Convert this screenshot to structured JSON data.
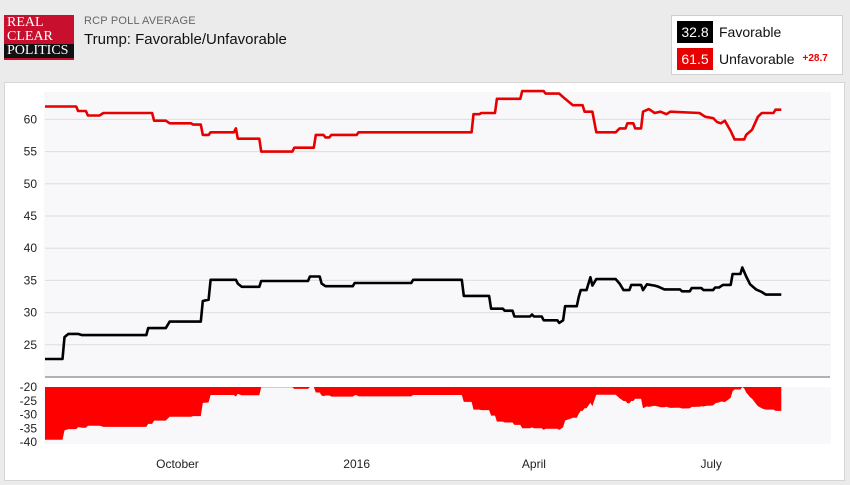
{
  "logo": {
    "line1": "REAL",
    "line2": "CLEAR",
    "line3": "POLITICS"
  },
  "header": {
    "kicker": "RCP POLL AVERAGE",
    "title": "Trump: Favorable/Unfavorable"
  },
  "legend": {
    "favorable": {
      "value": "32.8",
      "label": "Favorable",
      "color": "#000000"
    },
    "unfavorable": {
      "value": "61.5",
      "label": "Unfavorable",
      "color": "#e60000"
    },
    "spread": "+28.7"
  },
  "chart_data": [
    {
      "type": "line",
      "title": "Trump: Favorable/Unfavorable",
      "ylim": [
        20,
        65
      ],
      "yticks": [
        25,
        30,
        35,
        40,
        45,
        50,
        55,
        60
      ],
      "grid": true,
      "x_range": [
        "2015-07-25",
        "2016-08-31"
      ],
      "series": [
        {
          "name": "Unfavorable",
          "color": "#e60000",
          "points": [
            [
              "2015-07-25",
              62.0
            ],
            [
              "2015-08-10",
              62.0
            ],
            [
              "2015-08-11",
              61.3
            ],
            [
              "2015-08-15",
              61.3
            ],
            [
              "2015-08-16",
              60.6
            ],
            [
              "2015-08-22",
              60.6
            ],
            [
              "2015-08-24",
              61.0
            ],
            [
              "2015-09-18",
              61.0
            ],
            [
              "2015-09-19",
              59.8
            ],
            [
              "2015-09-25",
              59.8
            ],
            [
              "2015-09-27",
              59.4
            ],
            [
              "2015-10-08",
              59.4
            ],
            [
              "2015-10-09",
              59.2
            ],
            [
              "2015-10-13",
              59.2
            ],
            [
              "2015-10-14",
              57.6
            ],
            [
              "2015-10-17",
              57.6
            ],
            [
              "2015-10-18",
              58.0
            ],
            [
              "2015-10-30",
              58.0
            ],
            [
              "2015-10-31",
              58.6
            ],
            [
              "2015-11-01",
              57.0
            ],
            [
              "2015-11-12",
              57.0
            ],
            [
              "2015-11-13",
              55.0
            ],
            [
              "2015-11-29",
              55.0
            ],
            [
              "2015-11-30",
              55.6
            ],
            [
              "2015-12-10",
              55.6
            ],
            [
              "2015-12-11",
              57.6
            ],
            [
              "2015-12-15",
              57.6
            ],
            [
              "2015-12-16",
              57.2
            ],
            [
              "2015-12-18",
              57.2
            ],
            [
              "2015-12-19",
              57.6
            ],
            [
              "2016-01-01",
              57.6
            ],
            [
              "2016-01-02",
              58.0
            ],
            [
              "2016-02-29",
              58.0
            ],
            [
              "2016-03-01",
              60.8
            ],
            [
              "2016-03-04",
              60.8
            ],
            [
              "2016-03-05",
              61.0
            ],
            [
              "2016-03-12",
              61.0
            ],
            [
              "2016-03-13",
              63.2
            ],
            [
              "2016-03-25",
              63.2
            ],
            [
              "2016-03-26",
              64.4
            ],
            [
              "2016-04-06",
              64.4
            ],
            [
              "2016-04-07",
              64.0
            ],
            [
              "2016-04-14",
              64.0
            ],
            [
              "2016-04-17",
              63.2
            ],
            [
              "2016-04-21",
              62.2
            ],
            [
              "2016-04-26",
              62.2
            ],
            [
              "2016-04-27",
              61.2
            ],
            [
              "2016-05-01",
              61.2
            ],
            [
              "2016-05-03",
              58.0
            ],
            [
              "2016-05-13",
              58.0
            ],
            [
              "2016-05-15",
              58.6
            ],
            [
              "2016-05-18",
              58.6
            ],
            [
              "2016-05-19",
              59.4
            ],
            [
              "2016-05-22",
              59.4
            ],
            [
              "2016-05-23",
              58.6
            ],
            [
              "2016-05-26",
              58.6
            ],
            [
              "2016-05-27",
              61.2
            ],
            [
              "2016-05-30",
              61.6
            ],
            [
              "2016-06-02",
              61.0
            ],
            [
              "2016-06-05",
              61.2
            ],
            [
              "2016-06-08",
              60.8
            ],
            [
              "2016-06-10",
              61.2
            ],
            [
              "2016-06-25",
              61.0
            ],
            [
              "2016-06-28",
              60.4
            ],
            [
              "2016-07-02",
              60.2
            ],
            [
              "2016-07-04",
              59.6
            ],
            [
              "2016-07-06",
              59.4
            ],
            [
              "2016-07-08",
              59.8
            ],
            [
              "2016-07-11",
              58.2
            ],
            [
              "2016-07-13",
              56.9
            ],
            [
              "2016-07-18",
              56.9
            ],
            [
              "2016-07-19",
              57.6
            ],
            [
              "2016-07-22",
              58.4
            ],
            [
              "2016-07-25",
              60.4
            ],
            [
              "2016-07-27",
              61.0
            ],
            [
              "2016-08-02",
              61.0
            ],
            [
              "2016-08-03",
              61.5
            ],
            [
              "2016-08-06",
              61.5
            ]
          ]
        },
        {
          "name": "Favorable",
          "color": "#000000",
          "points": [
            [
              "2015-07-25",
              22.8
            ],
            [
              "2015-08-03",
              22.8
            ],
            [
              "2015-08-04",
              26.2
            ],
            [
              "2015-08-06",
              26.7
            ],
            [
              "2015-08-11",
              26.7
            ],
            [
              "2015-08-13",
              26.5
            ],
            [
              "2015-09-15",
              26.5
            ],
            [
              "2015-09-16",
              27.6
            ],
            [
              "2015-09-25",
              27.6
            ],
            [
              "2015-09-27",
              28.6
            ],
            [
              "2015-10-13",
              28.6
            ],
            [
              "2015-10-14",
              31.8
            ],
            [
              "2015-10-17",
              32.0
            ],
            [
              "2015-10-18",
              35.1
            ],
            [
              "2015-10-31",
              35.1
            ],
            [
              "2015-11-01",
              34.5
            ],
            [
              "2015-11-03",
              34.0
            ],
            [
              "2015-11-12",
              34.0
            ],
            [
              "2015-11-13",
              34.9
            ],
            [
              "2015-12-07",
              34.9
            ],
            [
              "2015-12-08",
              35.6
            ],
            [
              "2015-12-13",
              35.6
            ],
            [
              "2015-12-14",
              34.5
            ],
            [
              "2015-12-16",
              34.1
            ],
            [
              "2015-12-30",
              34.1
            ],
            [
              "2015-12-31",
              34.6
            ],
            [
              "2016-01-29",
              34.6
            ],
            [
              "2016-01-30",
              35.1
            ],
            [
              "2016-02-24",
              35.1
            ],
            [
              "2016-02-25",
              32.6
            ],
            [
              "2016-03-09",
              32.6
            ],
            [
              "2016-03-10",
              30.6
            ],
            [
              "2016-03-16",
              30.6
            ],
            [
              "2016-03-17",
              30.3
            ],
            [
              "2016-03-21",
              30.3
            ],
            [
              "2016-03-22",
              29.4
            ],
            [
              "2016-03-30",
              29.4
            ],
            [
              "2016-03-31",
              29.7
            ],
            [
              "2016-04-01",
              29.4
            ],
            [
              "2016-04-05",
              29.4
            ],
            [
              "2016-04-06",
              28.8
            ],
            [
              "2016-04-13",
              28.8
            ],
            [
              "2016-04-14",
              28.4
            ],
            [
              "2016-04-16",
              28.8
            ],
            [
              "2016-04-17",
              31.0
            ],
            [
              "2016-04-23",
              31.0
            ],
            [
              "2016-04-24",
              32.4
            ],
            [
              "2016-04-25",
              33.5
            ],
            [
              "2016-04-28",
              33.5
            ],
            [
              "2016-04-30",
              35.5
            ],
            [
              "2016-05-01",
              34.2
            ],
            [
              "2016-05-03",
              35.2
            ],
            [
              "2016-05-13",
              35.2
            ],
            [
              "2016-05-15",
              34.5
            ],
            [
              "2016-05-17",
              33.5
            ],
            [
              "2016-05-20",
              33.5
            ],
            [
              "2016-05-21",
              34.3
            ],
            [
              "2016-05-26",
              34.3
            ],
            [
              "2016-05-27",
              33.5
            ],
            [
              "2016-05-29",
              34.4
            ],
            [
              "2016-06-02",
              34.2
            ],
            [
              "2016-06-04",
              34.0
            ],
            [
              "2016-06-07",
              33.6
            ],
            [
              "2016-06-15",
              33.6
            ],
            [
              "2016-06-16",
              33.3
            ],
            [
              "2016-06-20",
              33.3
            ],
            [
              "2016-06-21",
              33.8
            ],
            [
              "2016-06-26",
              33.8
            ],
            [
              "2016-06-27",
              33.5
            ],
            [
              "2016-07-02",
              33.5
            ],
            [
              "2016-07-03",
              33.9
            ],
            [
              "2016-07-05",
              33.9
            ],
            [
              "2016-07-07",
              34.3
            ],
            [
              "2016-07-11",
              34.3
            ],
            [
              "2016-07-12",
              36.0
            ],
            [
              "2016-07-16",
              36.0
            ],
            [
              "2016-07-17",
              37.0
            ],
            [
              "2016-07-19",
              35.6
            ],
            [
              "2016-07-21",
              34.4
            ],
            [
              "2016-07-24",
              33.6
            ],
            [
              "2016-07-27",
              33.2
            ],
            [
              "2016-07-29",
              32.8
            ],
            [
              "2016-08-06",
              32.8
            ]
          ]
        }
      ]
    },
    {
      "type": "area",
      "ylim": [
        -40,
        -20
      ],
      "yticks": [
        -20,
        -25,
        -30,
        -35,
        -40
      ],
      "x_tick_labels": [
        "October",
        "2016",
        "April",
        "July"
      ],
      "x_tick_dates": [
        "2015-10-01",
        "2016-01-01",
        "2016-04-01",
        "2016-07-01"
      ],
      "series": [
        {
          "color": "#ff0000",
          "derived_from": "Favorable minus Unfavorable"
        }
      ]
    }
  ]
}
